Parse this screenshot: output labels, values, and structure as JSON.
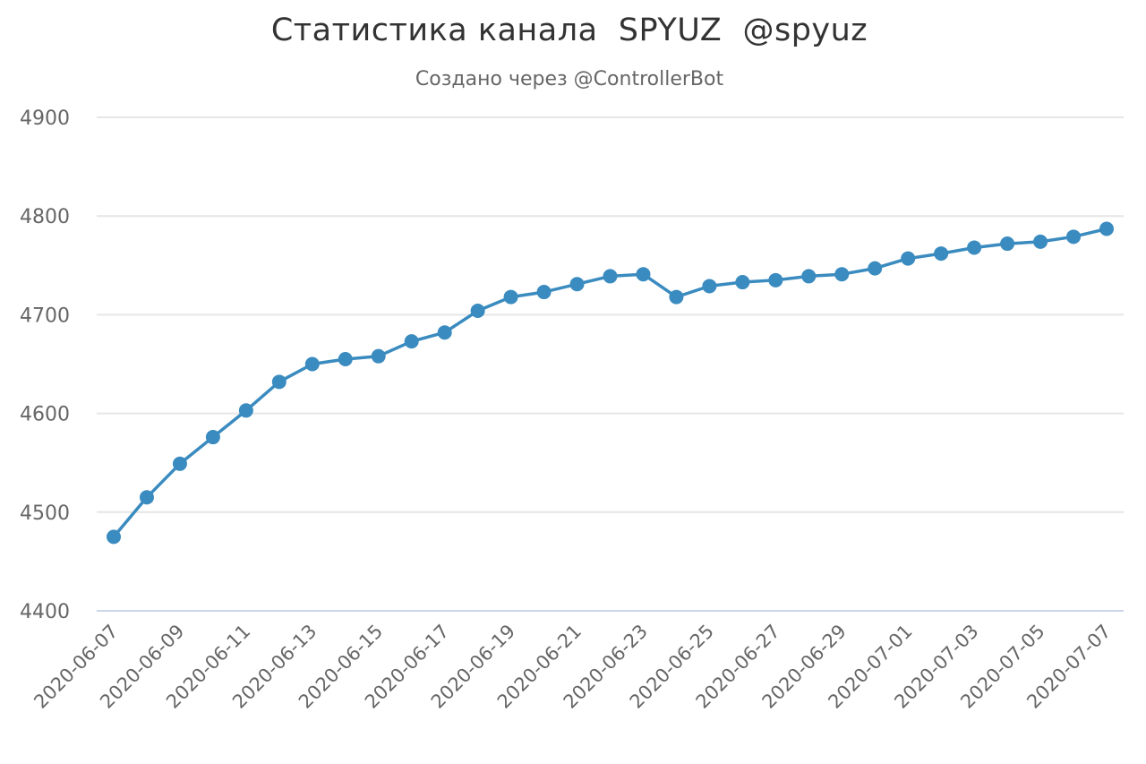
{
  "chart_data": {
    "type": "line",
    "title": "Статистика канала  SPYUZ  @spyuz",
    "subtitle": "Создано через @ControllerBot",
    "xlabel": "",
    "ylabel": "",
    "ylim": [
      4400,
      4900
    ],
    "yticks": [
      4400,
      4500,
      4600,
      4700,
      4800,
      4900
    ],
    "grid": true,
    "x_tick_labels": [
      "2020-06-07",
      "2020-06-09",
      "2020-06-11",
      "2020-06-13",
      "2020-06-15",
      "2020-06-17",
      "2020-06-19",
      "2020-06-21",
      "2020-06-23",
      "2020-06-25",
      "2020-06-27",
      "2020-06-29",
      "2020-07-01",
      "2020-07-03",
      "2020-07-05",
      "2020-07-07"
    ],
    "color": "#3a8bbf",
    "series": [
      {
        "x": [
          "2020-06-07",
          "2020-06-08",
          "2020-06-09",
          "2020-06-10",
          "2020-06-11",
          "2020-06-12",
          "2020-06-13",
          "2020-06-14",
          "2020-06-15",
          "2020-06-16",
          "2020-06-17",
          "2020-06-18",
          "2020-06-19",
          "2020-06-20",
          "2020-06-21",
          "2020-06-22",
          "2020-06-23",
          "2020-06-24",
          "2020-06-25",
          "2020-06-26",
          "2020-06-27",
          "2020-06-28",
          "2020-06-29",
          "2020-06-30",
          "2020-07-01",
          "2020-07-02",
          "2020-07-03",
          "2020-07-04",
          "2020-07-05",
          "2020-07-06",
          "2020-07-07"
        ],
        "values": [
          4475,
          4515,
          4549,
          4576,
          4603,
          4632,
          4650,
          4655,
          4658,
          4673,
          4682,
          4704,
          4718,
          4723,
          4731,
          4739,
          4741,
          4718,
          4729,
          4733,
          4735,
          4739,
          4741,
          4747,
          4757,
          4762,
          4768,
          4772,
          4774,
          4779,
          4787
        ]
      }
    ]
  }
}
